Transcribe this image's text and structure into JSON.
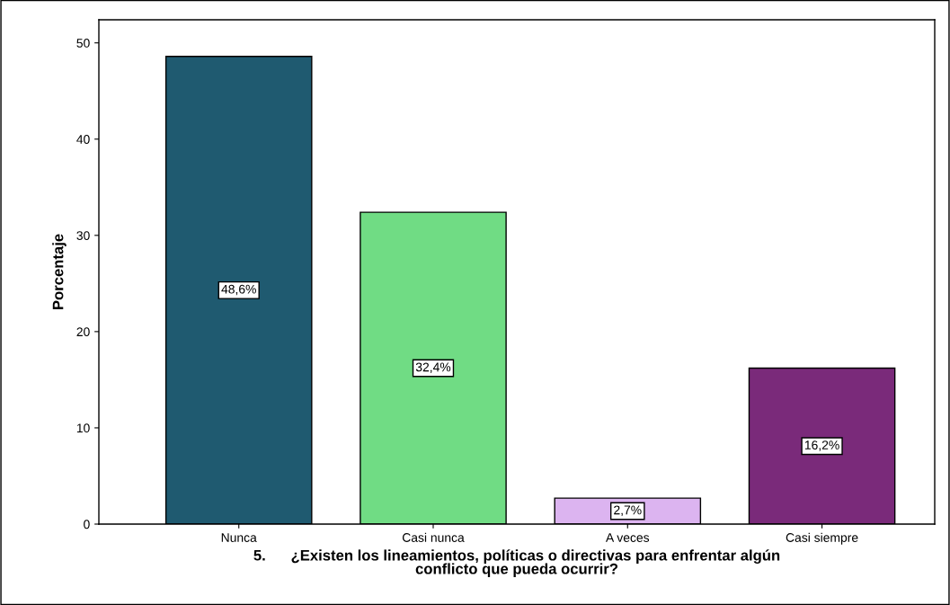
{
  "chart_data": {
    "type": "bar",
    "xlabel": "5.      ¿Existen los lineamientos, políticas o directivas para enfrentar algún\nconflicto que pueda ocurrir?",
    "ylabel": "Porcentaje",
    "categories": [
      "Nunca",
      "Casi nunca",
      "A veces",
      "Casi siempre"
    ],
    "values": [
      48.6,
      32.4,
      2.7,
      16.2
    ],
    "colors": [
      "#1f5a70",
      "#70dc84",
      "#dcb4f0",
      "#7a2a7a"
    ],
    "value_labels": [
      "48,6%",
      "32,4%",
      "2,7%",
      "16,2%"
    ],
    "ylim": [
      0,
      52.4
    ],
    "yticks": [
      0,
      10,
      20,
      30,
      40,
      50
    ],
    "grid": false,
    "legend": false
  }
}
